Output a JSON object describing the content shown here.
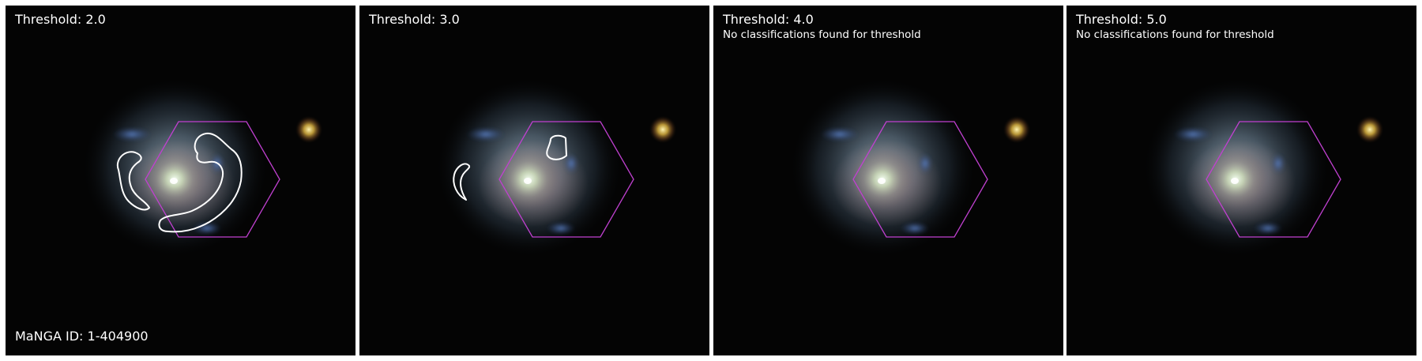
{
  "colors": {
    "hexagon": "#c040d0",
    "contour": "#ffffff",
    "background": "#000000",
    "text": "#ffffff"
  },
  "panels": [
    {
      "threshold_label": "Threshold: 2.0",
      "note": "",
      "manga_id": "MaNGA ID: 1-404900",
      "has_contours": true
    },
    {
      "threshold_label": "Threshold: 3.0",
      "note": "",
      "manga_id": "",
      "has_contours": true
    },
    {
      "threshold_label": "Threshold: 4.0",
      "note": "No classifications found for threshold",
      "manga_id": "",
      "has_contours": false
    },
    {
      "threshold_label": "Threshold: 5.0",
      "note": "No classifications found for threshold",
      "manga_id": "",
      "has_contours": false
    }
  ]
}
